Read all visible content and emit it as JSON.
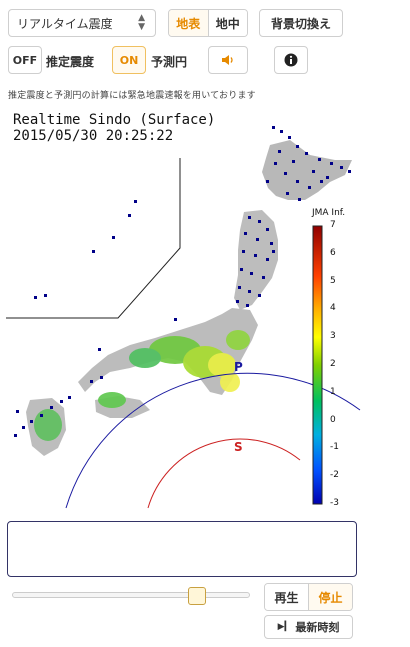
{
  "toolbar": {
    "mode_select": "リアルタイム震度",
    "map_tabs": [
      {
        "label": "地表",
        "active": true
      },
      {
        "label": "地中",
        "active": false
      }
    ],
    "background_toggle": "背景切換え",
    "estimate_toggle": "OFF",
    "estimate_label": "推定震度",
    "circle_toggle": "ON",
    "circle_label": "予測円"
  },
  "notice": "推定震度と予測円の計算には緊急地震速報を用いております",
  "map": {
    "title_line1": "Realtime Sindo (Surface)",
    "title_line2": "2015/05/30 20:25:22",
    "p_wave_label": "P",
    "s_wave_label": "S",
    "colorbar": {
      "title": "JMA Inf.",
      "ticks": [
        "7",
        "6",
        "5",
        "4",
        "3",
        "2",
        "1",
        "0",
        "-1",
        "-2",
        "-3"
      ]
    }
  },
  "playback": {
    "progress": 0.8,
    "play_label": "再生",
    "stop_label": "停止",
    "latest_label": "最新時刻"
  },
  "icons": {
    "select_caret": "caret-icon",
    "sound": "speaker-icon",
    "info": "info-icon",
    "latest": "play-arrow-icon"
  },
  "colors": {
    "accent": "#e68a00",
    "p_wave": "#1a1aa0",
    "s_wave": "#cc2222"
  }
}
